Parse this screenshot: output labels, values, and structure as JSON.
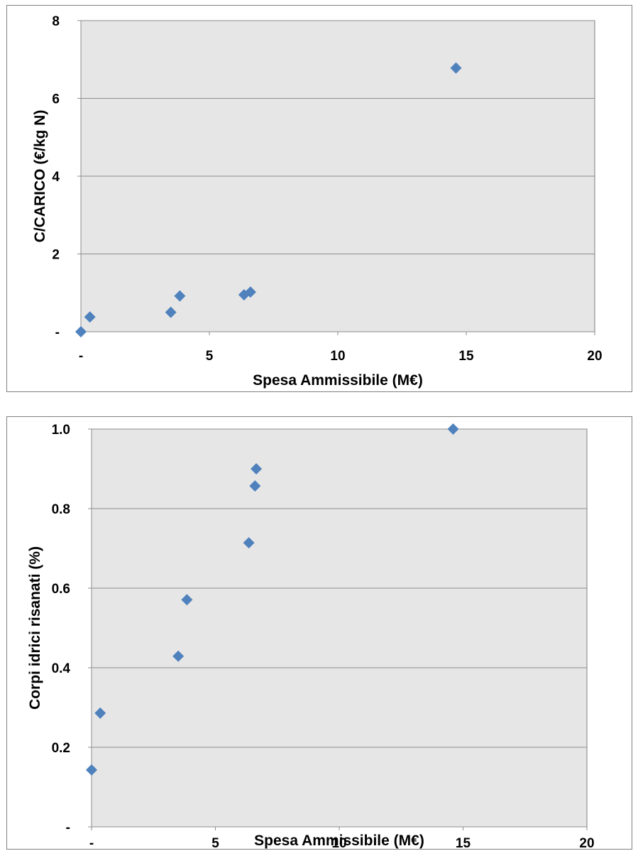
{
  "chart_data": [
    {
      "type": "scatter",
      "title": "",
      "xlabel": "Spesa Ammissibile (M€)",
      "ylabel": "C/CARICO  (€/kg N)",
      "xlim": [
        0,
        20
      ],
      "ylim": [
        0,
        8
      ],
      "x_ticks": [
        0,
        5,
        10,
        15,
        20
      ],
      "x_tick_labels": [
        "-",
        "5",
        "10",
        "15",
        "20"
      ],
      "y_ticks": [
        0,
        2,
        4,
        6,
        8
      ],
      "y_tick_labels": [
        "-",
        "2",
        "4",
        "6",
        "8"
      ],
      "grid": "horizontal",
      "legend": "none",
      "marker": "diamond",
      "colors": {
        "marker": "#4f81bd",
        "plot_bg": "#e6e6e6",
        "grid": "#8c8c8c",
        "frame": "#7f7f7f"
      },
      "series": [
        {
          "x": [
            0.0,
            0.35,
            3.5,
            3.85,
            6.35,
            6.6,
            14.6
          ],
          "y": [
            0.0,
            0.38,
            0.5,
            0.92,
            0.95,
            1.02,
            6.78
          ]
        }
      ]
    },
    {
      "type": "scatter",
      "title": "",
      "xlabel": "Spesa Ammissibile (M€)",
      "ylabel": "Corpi idrici risanati (%)",
      "xlim": [
        0,
        20
      ],
      "ylim": [
        0,
        1.0
      ],
      "x_ticks": [
        0,
        5,
        10,
        15,
        20
      ],
      "x_tick_labels": [
        "-",
        "5",
        "10",
        "15",
        "20"
      ],
      "y_ticks": [
        0,
        0.2,
        0.4,
        0.6,
        0.8,
        1.0
      ],
      "y_tick_labels": [
        "-",
        "0.2",
        "0.4",
        "0.6",
        "0.8",
        "1.0"
      ],
      "grid": "horizontal",
      "legend": "none",
      "marker": "diamond",
      "colors": {
        "marker": "#4f81bd",
        "plot_bg": "#e6e6e6",
        "grid": "#8c8c8c",
        "frame": "#7f7f7f"
      },
      "series": [
        {
          "x": [
            0.0,
            0.35,
            3.5,
            3.85,
            6.35,
            6.6,
            6.65,
            14.6
          ],
          "y": [
            0.143,
            0.286,
            0.429,
            0.571,
            0.714,
            0.857,
            0.9,
            1.0
          ]
        }
      ]
    }
  ]
}
